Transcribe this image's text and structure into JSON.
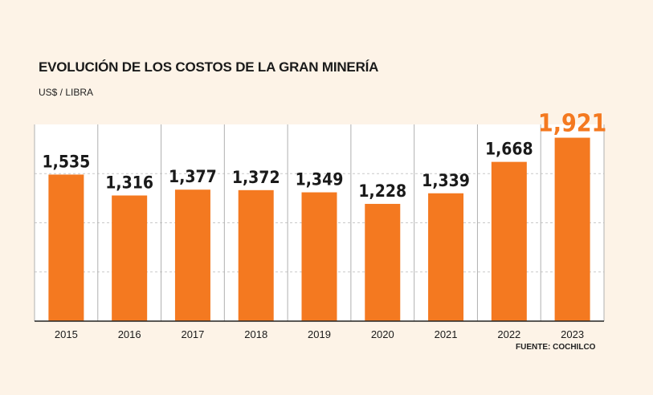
{
  "chart_data": {
    "type": "bar",
    "title": "EVOLUCIÓN DE LOS COSTOS DE LA GRAN MINERÍA",
    "ylabel": "US$ / LIBRA",
    "xlabel": "",
    "categories": [
      "2015",
      "2016",
      "2017",
      "2018",
      "2019",
      "2020",
      "2021",
      "2022",
      "2023"
    ],
    "values": [
      1.535,
      1.316,
      1.377,
      1.372,
      1.349,
      1.228,
      1.339,
      1.668,
      1.921
    ],
    "value_labels": [
      "1,535",
      "1,316",
      "1,377",
      "1,372",
      "1,349",
      "1,228",
      "1,339",
      "1,668",
      "1,921"
    ],
    "ylim": [
      0,
      2.06
    ],
    "source": "FUENTE: COCHILCO",
    "highlight_index": 8
  },
  "colors": {
    "bar": "#f47920",
    "highlight_label": "#f47920",
    "label": "#1a1a1a",
    "grid": "#b0b0b0",
    "panel": "#ffffff"
  }
}
